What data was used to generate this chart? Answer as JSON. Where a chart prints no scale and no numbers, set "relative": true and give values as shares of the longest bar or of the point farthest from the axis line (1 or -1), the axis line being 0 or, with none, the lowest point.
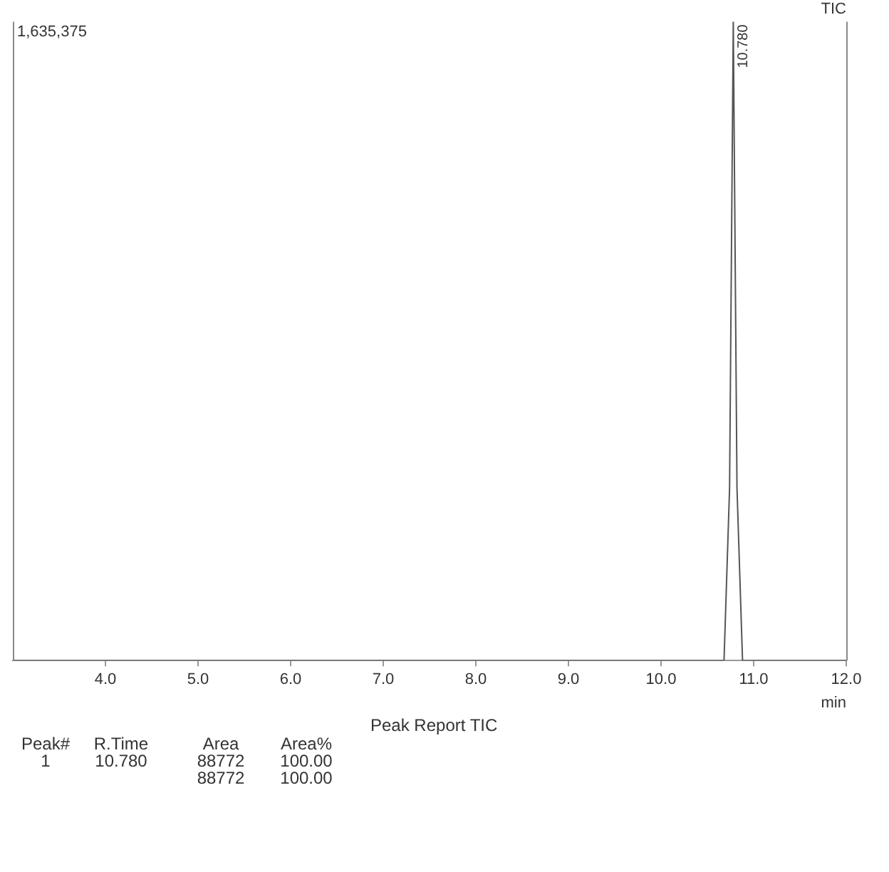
{
  "chart_data": {
    "type": "line",
    "relative": true,
    "title": "TIC",
    "xlabel": "min",
    "x": [
      3.0,
      10.68,
      10.74,
      10.78,
      10.82,
      10.88,
      12.0
    ],
    "series": [
      {
        "color": "#555555",
        "values": [
          0,
          0,
          0.27,
          1,
          0.27,
          0,
          0
        ]
      }
    ],
    "xlim": [
      3.0,
      12.0
    ],
    "xticks": [
      {
        "value": 4,
        "label": "4.0"
      },
      {
        "value": 5,
        "label": "5.0"
      },
      {
        "value": 6,
        "label": "6.0"
      },
      {
        "value": 7,
        "label": "7.0"
      },
      {
        "value": 8,
        "label": "8.0"
      },
      {
        "value": 9,
        "label": "9.0"
      },
      {
        "value": 10,
        "label": "10.0"
      },
      {
        "value": 11,
        "label": "11.0"
      },
      {
        "value": 12,
        "label": "12.0"
      }
    ],
    "grid": false,
    "legend": false,
    "marker": "none",
    "line_style": "solid",
    "annotations": [
      {
        "text": "10.780",
        "x": 10.78,
        "y": 1
      },
      "1,635,375",
      "Peak Report TIC",
      "Peak#",
      "R.Time",
      "Area",
      "Area%",
      "1",
      "10.780",
      "88772",
      "100.00",
      "88772",
      "100.00"
    ]
  }
}
